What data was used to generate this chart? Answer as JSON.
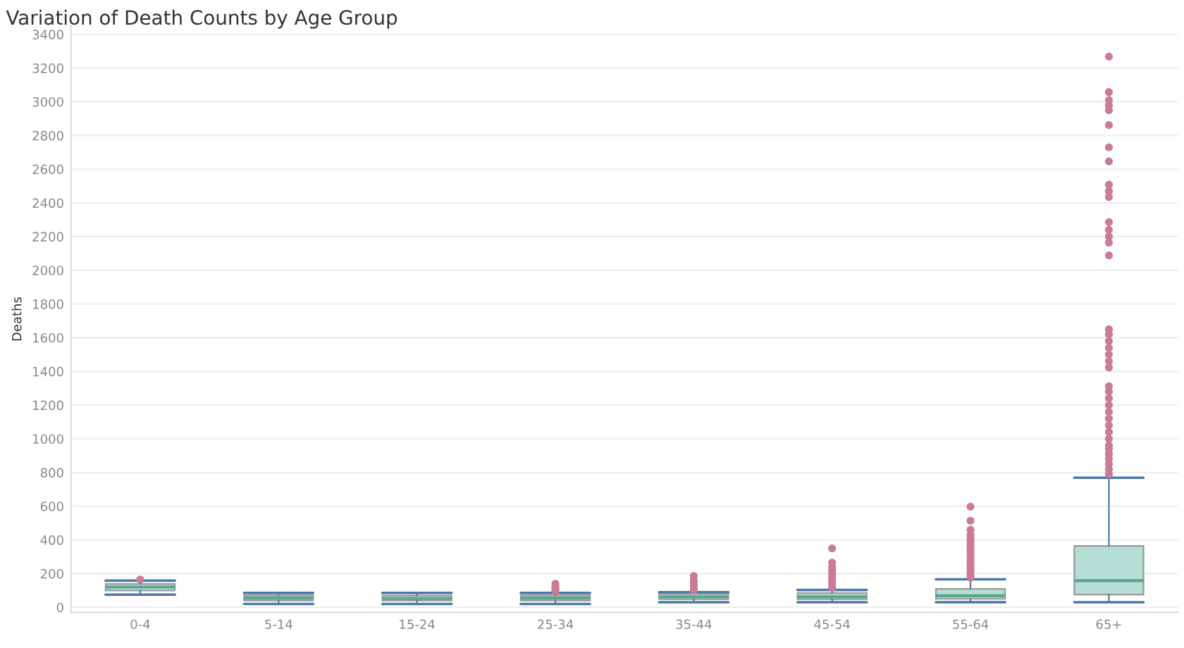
{
  "chart_data": {
    "type": "box",
    "title": "Variation of Death Counts by Age Group",
    "ylabel": "Deaths",
    "categories": [
      "0-4",
      "5-14",
      "15-24",
      "25-34",
      "35-44",
      "45-54",
      "55-64",
      "65+"
    ],
    "series": [
      {
        "color": "#b5ded5",
        "boxes": [
          {
            "low": 75,
            "q1": 100,
            "median": 120,
            "q3": 138,
            "high": 158,
            "outliers": [
              165
            ]
          },
          {
            "low": 20,
            "q1": 40,
            "median": 55,
            "q3": 70,
            "high": 85
          },
          {
            "low": 20,
            "q1": 40,
            "median": 52,
            "q3": 68,
            "high": 85
          },
          {
            "low": 20,
            "q1": 40,
            "median": 55,
            "q3": 70,
            "high": 85,
            "outliers": [
              95,
              105,
              115,
              125,
              140
            ]
          },
          {
            "low": 30,
            "q1": 48,
            "median": 62,
            "q3": 80,
            "high": 90,
            "outliers": [
              100,
              110,
              120,
              130,
              140,
              150,
              160,
              186
            ]
          },
          {
            "low": 30,
            "q1": 48,
            "median": 62,
            "q3": 84,
            "high": 103,
            "outliers": [
              115,
              130,
              145,
              160,
              175,
              190,
              205,
              220,
              240,
              265,
              350
            ]
          },
          {
            "low": 30,
            "q1": 50,
            "median": 68,
            "q3": 109,
            "high": 166,
            "outliers": [
              175,
              190,
              210,
              230,
              250,
              270,
              290,
              310,
              330,
              350,
              370,
              390,
              410,
              430,
              460,
              514,
              597
            ]
          },
          {
            "low": 30,
            "q1": 76,
            "median": 158,
            "q3": 364,
            "high": 769,
            "outliers": [
              790,
              820,
              850,
              880,
              910,
              940,
              960,
              1000,
              1040,
              1080,
              1120,
              1160,
              1200,
              1240,
              1280,
              1312,
              1423,
              1460,
              1500,
              1540,
              1580,
              1620,
              1650,
              2088,
              2164,
              2200,
              2240,
              2286,
              2435,
              2470,
              2508,
              2646,
              2730,
              2862,
              2949,
              2980,
              3010,
              3057,
              3268
            ]
          }
        ]
      }
    ],
    "ylim": [
      -30,
      3450
    ],
    "yticks": [
      0,
      200,
      400,
      600,
      800,
      1000,
      1200,
      1400,
      1600,
      1800,
      2000,
      2200,
      2400,
      2600,
      2800,
      3000,
      3200,
      3400
    ],
    "grid": "y",
    "legend": false
  }
}
